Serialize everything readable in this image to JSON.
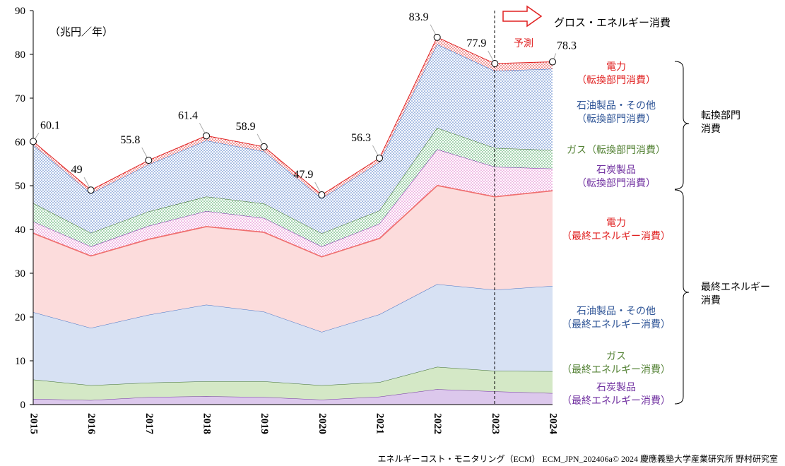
{
  "chart_data": {
    "type": "stacked-area",
    "title": "（兆円／年）",
    "categories": [
      "2015",
      "2016",
      "2017",
      "2018",
      "2019",
      "2020",
      "2021",
      "2022",
      "2023",
      "2024"
    ],
    "ylim": [
      0,
      90
    ],
    "yticks": [
      0,
      10,
      20,
      30,
      40,
      50,
      60,
      70,
      80,
      90
    ],
    "series": [
      {
        "name": "石炭製品\n（最終エネルギー消費）",
        "color": "#7030a0",
        "fill": "#dcc8ec",
        "dotted": false,
        "values": [
          1.3,
          1.0,
          1.7,
          1.9,
          1.7,
          1.1,
          1.8,
          3.5,
          3.0,
          2.6
        ]
      },
      {
        "name": "ガス\n（最終エネルギー消費）",
        "color": "#3a6b2a",
        "fill": "#d4e8c6",
        "dotted": false,
        "values": [
          4.4,
          3.4,
          3.3,
          3.4,
          3.6,
          3.3,
          3.3,
          5.1,
          4.7,
          5.0
        ]
      },
      {
        "name": "石油製品・その他\n（最終エネルギー消費）",
        "color": "#4472c4",
        "fill": "#d7e1f3",
        "dotted": false,
        "values": [
          15.4,
          13.1,
          15.5,
          17.5,
          15.9,
          12.2,
          15.5,
          18.9,
          18.5,
          19.5
        ]
      },
      {
        "name": "電力\n（最終エネルギー消費）",
        "color": "#f07070",
        "fill": "#fcdcdc",
        "dotted": false,
        "values": [
          18.2,
          16.6,
          17.4,
          18.0,
          18.3,
          17.3,
          17.5,
          22.7,
          21.4,
          21.9
        ]
      },
      {
        "name": "石炭製品\n（転換部門消費）",
        "color": "#7030a0",
        "fill": "#e070c8",
        "dotted": true,
        "values": [
          2.5,
          2.0,
          2.9,
          3.4,
          3.1,
          2.2,
          3.2,
          8.1,
          6.7,
          4.9
        ]
      },
      {
        "name": "ガス（転換部門消費）",
        "color": "#3a6b2a",
        "fill": "#3aa050",
        "dotted": true,
        "values": [
          4.2,
          3.1,
          3.3,
          3.3,
          3.3,
          3.0,
          3.0,
          4.9,
          4.3,
          4.2
        ]
      },
      {
        "name": "石油製品・その他\n（転換部門消費）",
        "color": "#4472c4",
        "fill": "#4472c4",
        "dotted": true,
        "values": [
          13.3,
          9.0,
          10.7,
          12.8,
          11.9,
          8.0,
          11.0,
          19.1,
          17.6,
          18.6
        ]
      },
      {
        "name": "電力\n（転換部門消費）",
        "color": "#e02020",
        "fill": "#e02020",
        "dotted": true,
        "values": [
          0.8,
          0.8,
          1.0,
          1.1,
          1.1,
          0.8,
          1.0,
          1.6,
          1.7,
          1.6
        ]
      }
    ],
    "totals": [
      60.1,
      49.0,
      55.8,
      61.4,
      58.9,
      47.9,
      56.3,
      83.9,
      77.9,
      78.3
    ],
    "total_label": "グロス・エネルギー消費",
    "forecast_label": "予測",
    "group_labels": [
      "転換部門\n消費",
      "最終エネルギー\n消費"
    ],
    "footer": "エネルギーコスト・モニタリング（ECM） ECM_JPN_202406a© 2024 慶應義塾大学産業研究所 野村研究室"
  }
}
